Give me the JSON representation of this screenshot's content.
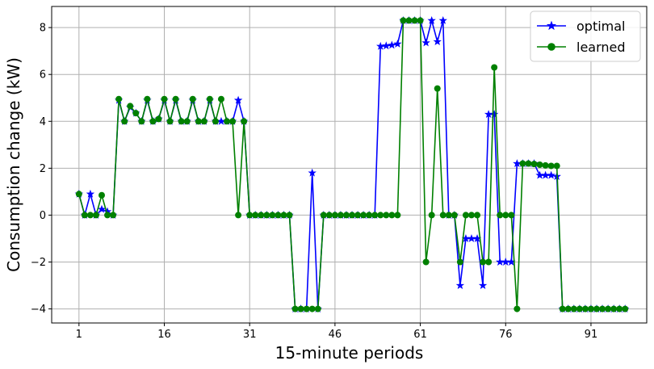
{
  "chart_data": {
    "type": "line",
    "xlabel": "15-minute periods",
    "ylabel": "Consumption change (kW)",
    "xticks": [
      1,
      16,
      31,
      46,
      61,
      76,
      91
    ],
    "yticks": [
      -4,
      -2,
      0,
      2,
      4,
      6,
      8
    ],
    "xlim": [
      -3.8,
      100.8
    ],
    "ylim": [
      -4.6,
      8.9
    ],
    "grid": true,
    "legend_position": "top-right",
    "series": [
      {
        "name": "optimal",
        "color": "#0000ff",
        "marker": "star",
        "x": [
          1,
          2,
          3,
          4,
          5,
          6,
          7,
          8,
          9,
          10,
          11,
          12,
          13,
          14,
          15,
          16,
          17,
          18,
          19,
          20,
          21,
          22,
          23,
          24,
          25,
          26,
          27,
          28,
          29,
          30,
          31,
          32,
          33,
          34,
          35,
          36,
          37,
          38,
          39,
          40,
          41,
          42,
          43,
          44,
          45,
          46,
          47,
          48,
          49,
          50,
          51,
          52,
          53,
          54,
          55,
          56,
          57,
          58,
          59,
          60,
          61,
          62,
          63,
          64,
          65,
          66,
          67,
          68,
          69,
          70,
          71,
          72,
          73,
          74,
          75,
          76,
          77,
          78,
          79,
          80,
          81,
          82,
          83,
          84,
          85,
          86,
          87,
          88,
          89,
          90,
          91,
          92,
          93,
          94,
          95,
          96,
          97
        ],
        "y": [
          0.9,
          0,
          0.9,
          0,
          0.25,
          0.15,
          0,
          4.9,
          4,
          4.6,
          4.35,
          4,
          4.9,
          4,
          4.1,
          4.9,
          4,
          4.9,
          4,
          4,
          4.9,
          4,
          4,
          4.9,
          4,
          4,
          4,
          4,
          4.9,
          4,
          0,
          0,
          0,
          0,
          0,
          0,
          0,
          0,
          -4,
          -4,
          -4,
          1.8,
          -4,
          0,
          0,
          0,
          0,
          0,
          0,
          0,
          0,
          0,
          0,
          7.2,
          7.22,
          7.25,
          7.3,
          8.3,
          8.3,
          8.3,
          8.3,
          7.35,
          8.3,
          7.4,
          8.3,
          0,
          0,
          -3,
          -1,
          -1,
          -1,
          -3,
          4.3,
          4.3,
          -2,
          -2,
          -2,
          2.2,
          2.2,
          2.2,
          2.2,
          1.7,
          1.7,
          1.7,
          1.65,
          -4,
          -4,
          -4,
          -4,
          -4,
          -4,
          -4,
          -4,
          -4,
          -4,
          -4,
          -4
        ]
      },
      {
        "name": "learned",
        "color": "#008000",
        "marker": "circle",
        "x": [
          1,
          2,
          3,
          4,
          5,
          6,
          7,
          8,
          9,
          10,
          11,
          12,
          13,
          14,
          15,
          16,
          17,
          18,
          19,
          20,
          21,
          22,
          23,
          24,
          25,
          26,
          27,
          28,
          29,
          30,
          31,
          32,
          33,
          34,
          35,
          36,
          37,
          38,
          39,
          40,
          41,
          42,
          43,
          44,
          45,
          46,
          47,
          48,
          49,
          50,
          51,
          52,
          53,
          54,
          55,
          56,
          57,
          58,
          59,
          60,
          61,
          62,
          63,
          64,
          65,
          66,
          67,
          68,
          69,
          70,
          71,
          72,
          73,
          74,
          75,
          76,
          77,
          78,
          79,
          80,
          81,
          82,
          83,
          84,
          85,
          86,
          87,
          88,
          89,
          90,
          91,
          92,
          93,
          94,
          95,
          96,
          97
        ],
        "y": [
          0.9,
          0,
          0,
          0,
          0.85,
          0,
          0,
          4.95,
          4,
          4.65,
          4.35,
          4,
          4.95,
          4,
          4.1,
          4.95,
          4,
          4.95,
          4,
          4,
          4.95,
          4,
          4,
          4.95,
          4,
          4.95,
          4,
          4,
          0,
          4,
          0,
          0,
          0,
          0,
          0,
          0,
          0,
          0,
          -4,
          -4,
          -4,
          -4,
          -4,
          0,
          0,
          0,
          0,
          0,
          0,
          0,
          0,
          0,
          0,
          0,
          0,
          0,
          0,
          8.3,
          8.3,
          8.3,
          8.3,
          -2,
          0,
          5.4,
          0,
          0,
          0,
          -2,
          0,
          0,
          0,
          -2,
          -2,
          6.3,
          0,
          0,
          0,
          -4,
          2.2,
          2.2,
          2.18,
          2.15,
          2.12,
          2.1,
          2.1,
          -4,
          -4,
          -4,
          -4,
          -4,
          -4,
          -4,
          -4,
          -4,
          -4,
          -4,
          -4
        ]
      }
    ]
  }
}
